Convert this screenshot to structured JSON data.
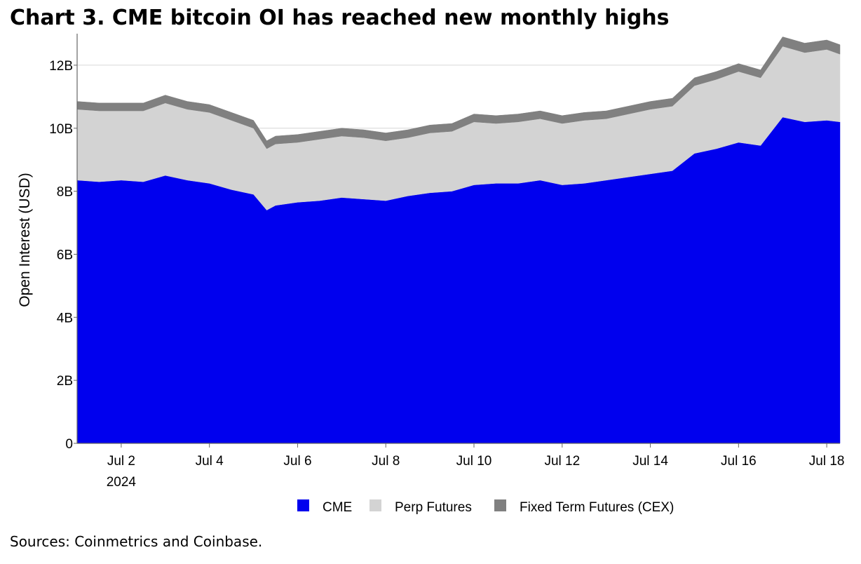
{
  "title": "Chart 3. CME bitcoin OI has reached new monthly highs",
  "source": "Sources: Coinmetrics and Coinbase.",
  "chart_data": {
    "type": "area",
    "stacked": true,
    "title": "Chart 3. CME bitcoin OI has reached new monthly highs",
    "xlabel": "",
    "ylabel": "Open Interest (USD)",
    "xlim": [
      "2024-07-01",
      "2024-07-18"
    ],
    "ylim": [
      0,
      13
    ],
    "yticks": [
      0,
      2,
      4,
      6,
      8,
      10,
      12
    ],
    "ytick_labels": [
      "0",
      "2B",
      "4B",
      "6B",
      "8B",
      "10B",
      "12B"
    ],
    "xticks": [
      "Jul 2",
      "Jul 4",
      "Jul 6",
      "Jul 8",
      "Jul 10",
      "Jul 12",
      "Jul 14",
      "Jul 16",
      "Jul 18"
    ],
    "xtick_year": "2024",
    "gridlines": true,
    "legend_position": "bottom",
    "x": [
      "Jul 1",
      "Jul 1.5",
      "Jul 2",
      "Jul 2.5",
      "Jul 3",
      "Jul 3.5",
      "Jul 4",
      "Jul 4.5",
      "Jul 5",
      "Jul 5.3",
      "Jul 5.5",
      "Jul 6",
      "Jul 6.5",
      "Jul 7",
      "Jul 7.5",
      "Jul 8",
      "Jul 8.5",
      "Jul 9",
      "Jul 9.5",
      "Jul 10",
      "Jul 10.5",
      "Jul 11",
      "Jul 11.5",
      "Jul 12",
      "Jul 12.5",
      "Jul 13",
      "Jul 13.5",
      "Jul 14",
      "Jul 14.5",
      "Jul 15",
      "Jul 15.5",
      "Jul 16",
      "Jul 16.5",
      "Jul 17",
      "Jul 17.5",
      "Jul 18",
      "Jul 18.3"
    ],
    "series": [
      {
        "name": "CME",
        "color": "#0000ee",
        "values": [
          8.35,
          8.3,
          8.35,
          8.3,
          8.5,
          8.35,
          8.25,
          8.05,
          7.9,
          7.4,
          7.55,
          7.65,
          7.7,
          7.8,
          7.75,
          7.7,
          7.85,
          7.95,
          8.0,
          8.2,
          8.25,
          8.25,
          8.35,
          8.2,
          8.25,
          8.35,
          8.45,
          8.55,
          8.65,
          9.2,
          9.35,
          9.55,
          9.45,
          10.35,
          10.2,
          10.25,
          10.2
        ]
      },
      {
        "name": "Perp Futures",
        "color": "#d3d3d3",
        "values": [
          2.25,
          2.25,
          2.2,
          2.25,
          2.3,
          2.25,
          2.25,
          2.2,
          2.1,
          1.95,
          1.95,
          1.9,
          1.95,
          1.95,
          1.95,
          1.9,
          1.85,
          1.9,
          1.9,
          2.0,
          1.9,
          1.95,
          1.95,
          1.95,
          2.0,
          1.95,
          2.0,
          2.05,
          2.05,
          2.15,
          2.2,
          2.25,
          2.15,
          2.25,
          2.2,
          2.25,
          2.15
        ]
      },
      {
        "name": "Fixed Term Futures (CEX)",
        "color": "#808080",
        "values": [
          0.25,
          0.25,
          0.25,
          0.25,
          0.25,
          0.25,
          0.25,
          0.25,
          0.25,
          0.25,
          0.25,
          0.25,
          0.25,
          0.25,
          0.25,
          0.25,
          0.25,
          0.25,
          0.25,
          0.25,
          0.25,
          0.25,
          0.25,
          0.25,
          0.25,
          0.25,
          0.25,
          0.25,
          0.25,
          0.25,
          0.25,
          0.25,
          0.25,
          0.3,
          0.3,
          0.3,
          0.3
        ]
      }
    ],
    "legend": [
      "CME",
      "Perp Futures",
      "Fixed Term Futures (CEX)"
    ]
  }
}
